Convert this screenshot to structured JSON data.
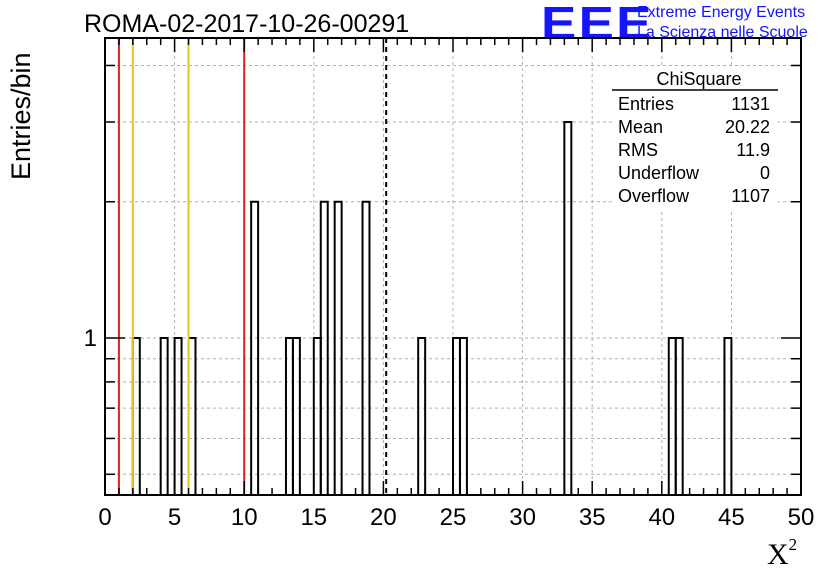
{
  "header": {
    "run_title": "ROMA-02-2017-10-26-00291",
    "logo_text": "EEE",
    "brand_line1": "Extreme Energy Events",
    "brand_line2": "La Scienza nelle Scuole"
  },
  "chart_data": {
    "type": "bar",
    "histogram_name": "ChiSquare",
    "xlabel": "X",
    "xlabel_superscript": "2",
    "ylabel": "Entries/bin",
    "xlim": [
      0,
      50
    ],
    "ylog": true,
    "ylim": [
      0.45,
      4.6
    ],
    "grid": true,
    "x_ticks": [
      0,
      5,
      10,
      15,
      20,
      25,
      30,
      35,
      40,
      45,
      50
    ],
    "y_ticks": [
      1
    ],
    "bin_width": 0.5,
    "bins": [
      {
        "x": 2.0,
        "y": 1
      },
      {
        "x": 4.0,
        "y": 1
      },
      {
        "x": 5.0,
        "y": 1
      },
      {
        "x": 6.0,
        "y": 1
      },
      {
        "x": 10.5,
        "y": 2
      },
      {
        "x": 13.0,
        "y": 1
      },
      {
        "x": 13.5,
        "y": 1
      },
      {
        "x": 15.0,
        "y": 1
      },
      {
        "x": 15.5,
        "y": 2
      },
      {
        "x": 16.5,
        "y": 2
      },
      {
        "x": 18.5,
        "y": 2
      },
      {
        "x": 22.5,
        "y": 1
      },
      {
        "x": 25.0,
        "y": 1
      },
      {
        "x": 25.5,
        "y": 1
      },
      {
        "x": 33.0,
        "y": 3
      },
      {
        "x": 40.5,
        "y": 1
      },
      {
        "x": 41.0,
        "y": 1
      },
      {
        "x": 44.5,
        "y": 1
      }
    ],
    "vertical_lines": [
      {
        "x": 1.0,
        "color": "#dd2222",
        "style": "solid"
      },
      {
        "x": 2.0,
        "color": "#f2c018",
        "style": "solid"
      },
      {
        "x": 6.0,
        "color": "#f2c018",
        "style": "solid"
      },
      {
        "x": 10.0,
        "color": "#dd2222",
        "style": "solid"
      },
      {
        "x": 20.2,
        "color": "#000000",
        "style": "dashed"
      }
    ],
    "stats_box": {
      "title": "ChiSquare",
      "rows": [
        {
          "label": "Entries",
          "value": "1131"
        },
        {
          "label": "Mean",
          "value": "20.22"
        },
        {
          "label": "RMS",
          "value": "11.9"
        },
        {
          "label": "Underflow",
          "value": "0"
        },
        {
          "label": "Overflow",
          "value": "1107"
        }
      ]
    }
  }
}
